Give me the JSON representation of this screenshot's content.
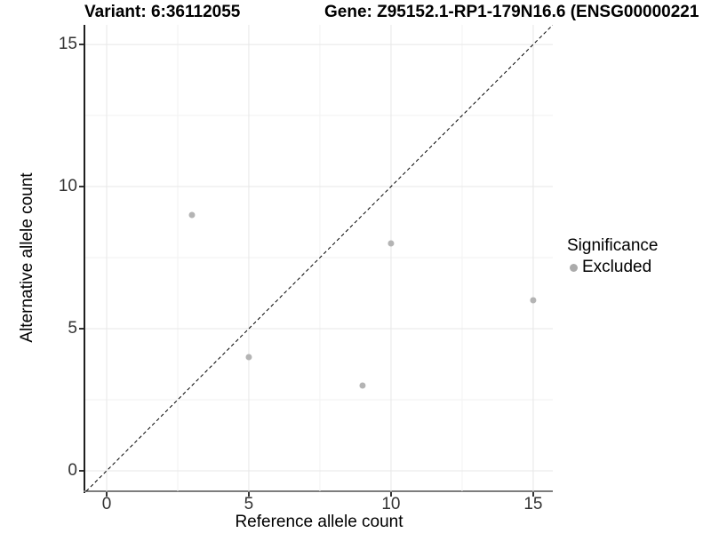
{
  "titles": {
    "variant": "Variant: 6:36112055",
    "gene": "Gene: Z95152.1-RP1-179N16.6 (ENSG00000221"
  },
  "axes": {
    "x": {
      "label": "Reference allele count",
      "tick_labels": [
        "0",
        "5",
        "10",
        "15"
      ]
    },
    "y": {
      "label": "Alternative allele count",
      "tick_labels": [
        "0",
        "5",
        "10",
        "15"
      ]
    }
  },
  "legend": {
    "title": "Significance",
    "items": [
      {
        "label": "Excluded",
        "color": "#ababab"
      }
    ]
  },
  "colors": {
    "background": "#ffffff",
    "point": "#b4b4b4",
    "identity_line": "#000000",
    "grid_major": "#e7e7e7",
    "grid_minor": "#f2f2f2",
    "axis_line_y": "#1f1f1f",
    "axis_line_x": "#7d7d7d",
    "tick_text": "#333333"
  },
  "chart_data": {
    "type": "scatter",
    "title": "Variant: 6:36112055",
    "subtitle": "Gene: Z95152.1-RP1-179N16.6 (ENSG00000221",
    "xlabel": "Reference allele count",
    "ylabel": "Alternative allele count",
    "xlim": [
      -0.75,
      15.69
    ],
    "ylim": [
      -0.72,
      15.69
    ],
    "x_ticks": [
      0,
      5,
      10,
      15
    ],
    "y_ticks": [
      0,
      5,
      10,
      15
    ],
    "x_minor_ticks": [
      2.5,
      7.5,
      12.5
    ],
    "y_minor_ticks": [
      2.5,
      7.5,
      12.5
    ],
    "grid": "major+minor",
    "legend_position": "right",
    "series": [
      {
        "name": "Excluded",
        "color": "#b4b4b4",
        "points": [
          [
            3,
            9
          ],
          [
            5,
            4
          ],
          [
            9,
            3
          ],
          [
            10,
            8
          ],
          [
            15,
            6
          ]
        ]
      }
    ],
    "identity_line": {
      "type": "y=x",
      "style": "dashed",
      "color": "#000000"
    }
  }
}
